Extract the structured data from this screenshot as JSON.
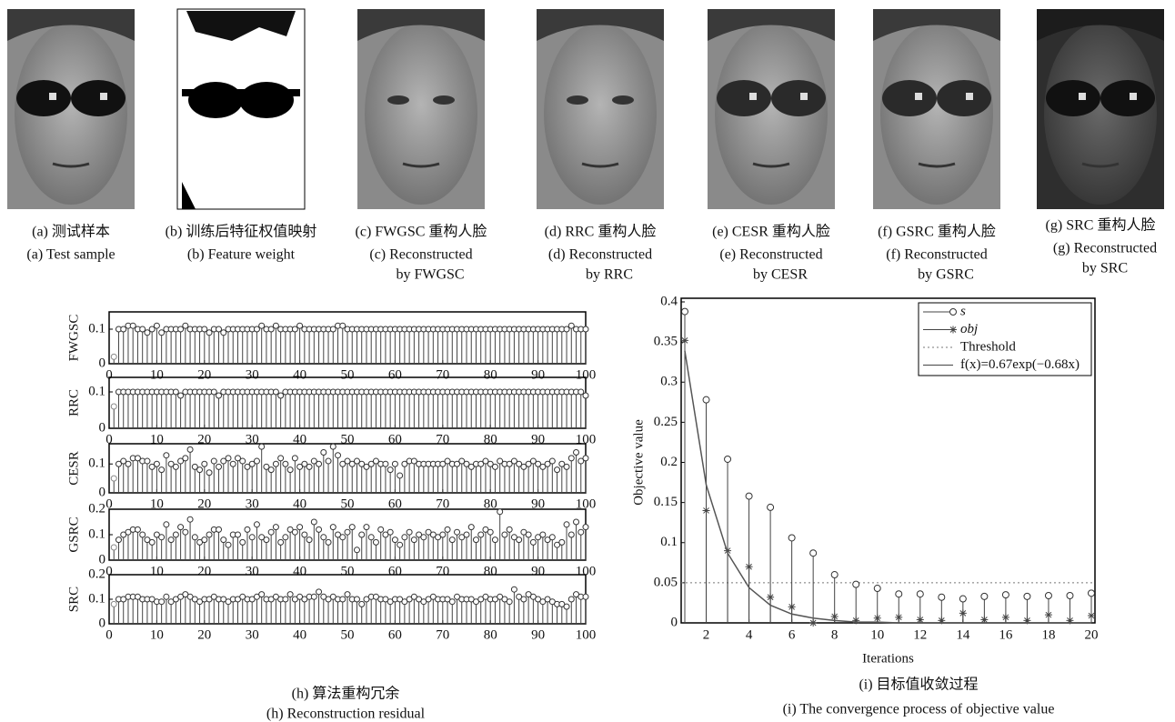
{
  "figures": [
    {
      "cn": "(a) 测试样本",
      "en": [
        "(a) Test sample"
      ]
    },
    {
      "cn": "(b) 训练后特征权值映射",
      "en": [
        "(b) Feature weight"
      ]
    },
    {
      "cn": "(c) FWGSC 重构人脸",
      "en": [
        "(c) Reconstructed",
        "by FWGSC"
      ]
    },
    {
      "cn": "(d) RRC 重构人脸",
      "en": [
        "(d) Reconstructed",
        "by RRC"
      ]
    },
    {
      "cn": "(e) CESR 重构人脸",
      "en": [
        "(e) Reconstructed",
        "by CESR"
      ]
    },
    {
      "cn": "(f) GSRC 重构人脸",
      "en": [
        "(f) Reconstructed",
        "by GSRC"
      ]
    },
    {
      "cn": "(g) SRC 重构人脸",
      "en": [
        "(g) Reconstructed",
        "by SRC"
      ]
    }
  ],
  "captions": {
    "h_cn": "(h) 算法重构冗余",
    "h_en": "(h) Reconstruction residual",
    "i_cn": "(i) 目标值收敛过程",
    "i_en": "(i) The convergence process of objective value"
  },
  "chart_data": [
    {
      "type": "stem",
      "ylabel": "FWGSC",
      "xlim": [
        0,
        100
      ],
      "xticks": [
        0,
        10,
        20,
        30,
        40,
        50,
        60,
        70,
        80,
        90,
        100
      ],
      "ylim": [
        0,
        0.15
      ],
      "yticks": [
        0,
        0.1
      ],
      "x": [
        1,
        2,
        3,
        4,
        5,
        6,
        7,
        8,
        9,
        10,
        11,
        12,
        13,
        14,
        15,
        16,
        17,
        18,
        19,
        20,
        21,
        22,
        23,
        24,
        25,
        26,
        27,
        28,
        29,
        30,
        31,
        32,
        33,
        34,
        35,
        36,
        37,
        38,
        39,
        40,
        41,
        42,
        43,
        44,
        45,
        46,
        47,
        48,
        49,
        50,
        51,
        52,
        53,
        54,
        55,
        56,
        57,
        58,
        59,
        60,
        61,
        62,
        63,
        64,
        65,
        66,
        67,
        68,
        69,
        70,
        71,
        72,
        73,
        74,
        75,
        76,
        77,
        78,
        79,
        80,
        81,
        82,
        83,
        84,
        85,
        86,
        87,
        88,
        89,
        90,
        91,
        92,
        93,
        94,
        95,
        96,
        97,
        98,
        99,
        100
      ],
      "values": [
        0.02,
        0.1,
        0.1,
        0.11,
        0.11,
        0.1,
        0.1,
        0.09,
        0.1,
        0.11,
        0.09,
        0.1,
        0.1,
        0.1,
        0.1,
        0.11,
        0.1,
        0.1,
        0.1,
        0.1,
        0.09,
        0.1,
        0.1,
        0.09,
        0.1,
        0.1,
        0.1,
        0.1,
        0.1,
        0.1,
        0.1,
        0.11,
        0.1,
        0.1,
        0.11,
        0.1,
        0.1,
        0.1,
        0.1,
        0.11,
        0.1,
        0.1,
        0.1,
        0.1,
        0.1,
        0.1,
        0.1,
        0.11,
        0.11,
        0.1,
        0.1,
        0.1,
        0.1,
        0.1,
        0.1,
        0.1,
        0.1,
        0.1,
        0.1,
        0.1,
        0.1,
        0.1,
        0.1,
        0.1,
        0.1,
        0.1,
        0.1,
        0.1,
        0.1,
        0.1,
        0.1,
        0.1,
        0.1,
        0.1,
        0.1,
        0.1,
        0.1,
        0.1,
        0.1,
        0.1,
        0.1,
        0.1,
        0.1,
        0.1,
        0.1,
        0.1,
        0.1,
        0.1,
        0.1,
        0.1,
        0.1,
        0.1,
        0.1,
        0.1,
        0.1,
        0.1,
        0.11,
        0.1,
        0.1,
        0.1
      ]
    },
    {
      "type": "stem",
      "ylabel": "RRC",
      "xlim": [
        0,
        100
      ],
      "xticks": [
        0,
        10,
        20,
        30,
        40,
        50,
        60,
        70,
        80,
        90,
        100
      ],
      "ylim": [
        0,
        0.14
      ],
      "yticks": [
        0,
        0.1
      ],
      "x": [
        1,
        2,
        3,
        4,
        5,
        6,
        7,
        8,
        9,
        10,
        11,
        12,
        13,
        14,
        15,
        16,
        17,
        18,
        19,
        20,
        21,
        22,
        23,
        24,
        25,
        26,
        27,
        28,
        29,
        30,
        31,
        32,
        33,
        34,
        35,
        36,
        37,
        38,
        39,
        40,
        41,
        42,
        43,
        44,
        45,
        46,
        47,
        48,
        49,
        50,
        51,
        52,
        53,
        54,
        55,
        56,
        57,
        58,
        59,
        60,
        61,
        62,
        63,
        64,
        65,
        66,
        67,
        68,
        69,
        70,
        71,
        72,
        73,
        74,
        75,
        76,
        77,
        78,
        79,
        80,
        81,
        82,
        83,
        84,
        85,
        86,
        87,
        88,
        89,
        90,
        91,
        92,
        93,
        94,
        95,
        96,
        97,
        98,
        99,
        100
      ],
      "values": [
        0.06,
        0.1,
        0.1,
        0.1,
        0.1,
        0.1,
        0.1,
        0.1,
        0.1,
        0.1,
        0.1,
        0.1,
        0.1,
        0.1,
        0.09,
        0.1,
        0.1,
        0.1,
        0.1,
        0.1,
        0.1,
        0.1,
        0.09,
        0.1,
        0.1,
        0.1,
        0.1,
        0.1,
        0.1,
        0.1,
        0.1,
        0.1,
        0.1,
        0.1,
        0.1,
        0.09,
        0.1,
        0.1,
        0.1,
        0.1,
        0.1,
        0.1,
        0.1,
        0.1,
        0.1,
        0.1,
        0.1,
        0.1,
        0.1,
        0.1,
        0.1,
        0.1,
        0.1,
        0.1,
        0.1,
        0.1,
        0.1,
        0.1,
        0.1,
        0.1,
        0.1,
        0.1,
        0.1,
        0.1,
        0.1,
        0.1,
        0.1,
        0.1,
        0.1,
        0.1,
        0.1,
        0.1,
        0.1,
        0.1,
        0.1,
        0.1,
        0.1,
        0.1,
        0.1,
        0.1,
        0.1,
        0.1,
        0.1,
        0.1,
        0.1,
        0.1,
        0.1,
        0.1,
        0.1,
        0.1,
        0.1,
        0.1,
        0.1,
        0.1,
        0.1,
        0.1,
        0.1,
        0.1,
        0.1,
        0.09
      ]
    },
    {
      "type": "stem",
      "ylabel": "CESR",
      "xlim": [
        0,
        100
      ],
      "xticks": [
        0,
        10,
        20,
        30,
        40,
        50,
        60,
        70,
        80,
        90,
        100
      ],
      "ylim": [
        0,
        0.17
      ],
      "yticks": [
        0,
        0.1
      ],
      "x": [
        1,
        2,
        3,
        4,
        5,
        6,
        7,
        8,
        9,
        10,
        11,
        12,
        13,
        14,
        15,
        16,
        17,
        18,
        19,
        20,
        21,
        22,
        23,
        24,
        25,
        26,
        27,
        28,
        29,
        30,
        31,
        32,
        33,
        34,
        35,
        36,
        37,
        38,
        39,
        40,
        41,
        42,
        43,
        44,
        45,
        46,
        47,
        48,
        49,
        50,
        51,
        52,
        53,
        54,
        55,
        56,
        57,
        58,
        59,
        60,
        61,
        62,
        63,
        64,
        65,
        66,
        67,
        68,
        69,
        70,
        71,
        72,
        73,
        74,
        75,
        76,
        77,
        78,
        79,
        80,
        81,
        82,
        83,
        84,
        85,
        86,
        87,
        88,
        89,
        90,
        91,
        92,
        93,
        94,
        95,
        96,
        97,
        98,
        99,
        100
      ],
      "values": [
        0.05,
        0.1,
        0.11,
        0.1,
        0.12,
        0.12,
        0.11,
        0.11,
        0.09,
        0.1,
        0.08,
        0.13,
        0.1,
        0.09,
        0.11,
        0.12,
        0.15,
        0.09,
        0.08,
        0.1,
        0.07,
        0.11,
        0.09,
        0.11,
        0.12,
        0.1,
        0.12,
        0.11,
        0.09,
        0.1,
        0.11,
        0.16,
        0.09,
        0.08,
        0.1,
        0.12,
        0.1,
        0.08,
        0.12,
        0.09,
        0.1,
        0.09,
        0.11,
        0.1,
        0.14,
        0.11,
        0.16,
        0.13,
        0.1,
        0.11,
        0.1,
        0.11,
        0.1,
        0.09,
        0.1,
        0.11,
        0.1,
        0.1,
        0.08,
        0.1,
        0.06,
        0.1,
        0.11,
        0.11,
        0.1,
        0.1,
        0.1,
        0.1,
        0.1,
        0.1,
        0.11,
        0.1,
        0.1,
        0.11,
        0.1,
        0.09,
        0.1,
        0.1,
        0.11,
        0.1,
        0.09,
        0.11,
        0.1,
        0.1,
        0.11,
        0.1,
        0.09,
        0.1,
        0.11,
        0.1,
        0.09,
        0.1,
        0.11,
        0.08,
        0.1,
        0.09,
        0.12,
        0.14,
        0.11,
        0.12
      ]
    },
    {
      "type": "stem",
      "ylabel": "GSRC",
      "xlim": [
        0,
        100
      ],
      "xticks": [
        0,
        10,
        20,
        30,
        40,
        50,
        60,
        70,
        80,
        90,
        100
      ],
      "ylim": [
        0,
        0.2
      ],
      "yticks": [
        0,
        0.1,
        0.2
      ],
      "x": [
        1,
        2,
        3,
        4,
        5,
        6,
        7,
        8,
        9,
        10,
        11,
        12,
        13,
        14,
        15,
        16,
        17,
        18,
        19,
        20,
        21,
        22,
        23,
        24,
        25,
        26,
        27,
        28,
        29,
        30,
        31,
        32,
        33,
        34,
        35,
        36,
        37,
        38,
        39,
        40,
        41,
        42,
        43,
        44,
        45,
        46,
        47,
        48,
        49,
        50,
        51,
        52,
        53,
        54,
        55,
        56,
        57,
        58,
        59,
        60,
        61,
        62,
        63,
        64,
        65,
        66,
        67,
        68,
        69,
        70,
        71,
        72,
        73,
        74,
        75,
        76,
        77,
        78,
        79,
        80,
        81,
        82,
        83,
        84,
        85,
        86,
        87,
        88,
        89,
        90,
        91,
        92,
        93,
        94,
        95,
        96,
        97,
        98,
        99,
        100
      ],
      "values": [
        0.05,
        0.08,
        0.1,
        0.11,
        0.12,
        0.12,
        0.1,
        0.08,
        0.07,
        0.1,
        0.09,
        0.14,
        0.08,
        0.1,
        0.13,
        0.11,
        0.16,
        0.09,
        0.07,
        0.08,
        0.1,
        0.12,
        0.12,
        0.08,
        0.06,
        0.1,
        0.1,
        0.07,
        0.12,
        0.09,
        0.14,
        0.09,
        0.08,
        0.11,
        0.13,
        0.07,
        0.09,
        0.12,
        0.11,
        0.13,
        0.1,
        0.08,
        0.15,
        0.12,
        0.09,
        0.07,
        0.13,
        0.1,
        0.09,
        0.11,
        0.13,
        0.04,
        0.1,
        0.13,
        0.09,
        0.07,
        0.12,
        0.1,
        0.11,
        0.08,
        0.06,
        0.09,
        0.11,
        0.08,
        0.1,
        0.09,
        0.11,
        0.1,
        0.09,
        0.1,
        0.12,
        0.08,
        0.11,
        0.09,
        0.1,
        0.13,
        0.08,
        0.1,
        0.12,
        0.11,
        0.08,
        0.19,
        0.1,
        0.12,
        0.09,
        0.08,
        0.11,
        0.1,
        0.07,
        0.09,
        0.1,
        0.08,
        0.09,
        0.06,
        0.07,
        0.14,
        0.1,
        0.15,
        0.11,
        0.13
      ]
    },
    {
      "type": "stem",
      "ylabel": "SRC",
      "xlim": [
        0,
        100
      ],
      "xticks": [
        0,
        10,
        20,
        30,
        40,
        50,
        60,
        70,
        80,
        90,
        100
      ],
      "ylim": [
        0,
        0.2
      ],
      "yticks": [
        0,
        0.1,
        0.2
      ],
      "x": [
        1,
        2,
        3,
        4,
        5,
        6,
        7,
        8,
        9,
        10,
        11,
        12,
        13,
        14,
        15,
        16,
        17,
        18,
        19,
        20,
        21,
        22,
        23,
        24,
        25,
        26,
        27,
        28,
        29,
        30,
        31,
        32,
        33,
        34,
        35,
        36,
        37,
        38,
        39,
        40,
        41,
        42,
        43,
        44,
        45,
        46,
        47,
        48,
        49,
        50,
        51,
        52,
        53,
        54,
        55,
        56,
        57,
        58,
        59,
        60,
        61,
        62,
        63,
        64,
        65,
        66,
        67,
        68,
        69,
        70,
        71,
        72,
        73,
        74,
        75,
        76,
        77,
        78,
        79,
        80,
        81,
        82,
        83,
        84,
        85,
        86,
        87,
        88,
        89,
        90,
        91,
        92,
        93,
        94,
        95,
        96,
        97,
        98,
        99,
        100
      ],
      "values": [
        0.08,
        0.1,
        0.1,
        0.11,
        0.11,
        0.11,
        0.1,
        0.1,
        0.1,
        0.09,
        0.09,
        0.11,
        0.09,
        0.1,
        0.11,
        0.12,
        0.11,
        0.1,
        0.09,
        0.1,
        0.1,
        0.11,
        0.1,
        0.1,
        0.09,
        0.1,
        0.1,
        0.11,
        0.1,
        0.1,
        0.11,
        0.12,
        0.1,
        0.1,
        0.11,
        0.1,
        0.1,
        0.12,
        0.1,
        0.11,
        0.1,
        0.11,
        0.11,
        0.13,
        0.11,
        0.1,
        0.11,
        0.1,
        0.1,
        0.12,
        0.1,
        0.1,
        0.08,
        0.1,
        0.11,
        0.11,
        0.1,
        0.1,
        0.09,
        0.1,
        0.1,
        0.09,
        0.1,
        0.11,
        0.1,
        0.09,
        0.1,
        0.11,
        0.1,
        0.1,
        0.1,
        0.09,
        0.11,
        0.1,
        0.1,
        0.1,
        0.09,
        0.1,
        0.11,
        0.1,
        0.1,
        0.11,
        0.1,
        0.09,
        0.14,
        0.11,
        0.1,
        0.12,
        0.11,
        0.1,
        0.09,
        0.1,
        0.09,
        0.08,
        0.08,
        0.07,
        0.1,
        0.12,
        0.11,
        0.11
      ]
    },
    {
      "type": "stem",
      "xlabel": "Iterations",
      "ylabel": "Objective value",
      "xlim": [
        1,
        20
      ],
      "xticks": [
        2,
        4,
        6,
        8,
        10,
        12,
        14,
        16,
        18,
        20
      ],
      "ylim": [
        0,
        0.4
      ],
      "yticks": [
        0,
        0.05,
        0.1,
        0.15,
        0.2,
        0.25,
        0.3,
        0.35,
        0.4
      ],
      "x": [
        1,
        2,
        3,
        4,
        5,
        6,
        7,
        8,
        9,
        10,
        11,
        12,
        13,
        14,
        15,
        16,
        17,
        18,
        19,
        20
      ],
      "series": [
        {
          "name": "s",
          "marker": "circle",
          "values": [
            0.388,
            0.278,
            0.204,
            0.158,
            0.144,
            0.106,
            0.087,
            0.06,
            0.048,
            0.043,
            0.036,
            0.036,
            0.032,
            0.03,
            0.033,
            0.035,
            0.033,
            0.034,
            0.034,
            0.037
          ]
        },
        {
          "name": "obj",
          "marker": "star",
          "values": [
            0.352,
            0.14,
            0.09,
            0.07,
            0.032,
            0.02,
            0,
            0.008,
            0.003,
            0.006,
            0.007,
            0.004,
            0.003,
            0.012,
            0.004,
            0.007,
            0.003,
            0.01,
            0.003,
            0.009
          ]
        },
        {
          "name": "f(x)=0.67exp(−0.68x)",
          "marker": "line",
          "values": [
            0.339,
            0.172,
            0.087,
            0.044,
            0.022,
            0.011,
            0.006,
            0.003,
            0.001,
            0.001,
            0,
            0,
            0,
            0,
            0,
            0,
            0,
            0,
            0,
            0
          ]
        }
      ],
      "threshold": {
        "name": "Threshold",
        "value": 0.05
      }
    }
  ]
}
